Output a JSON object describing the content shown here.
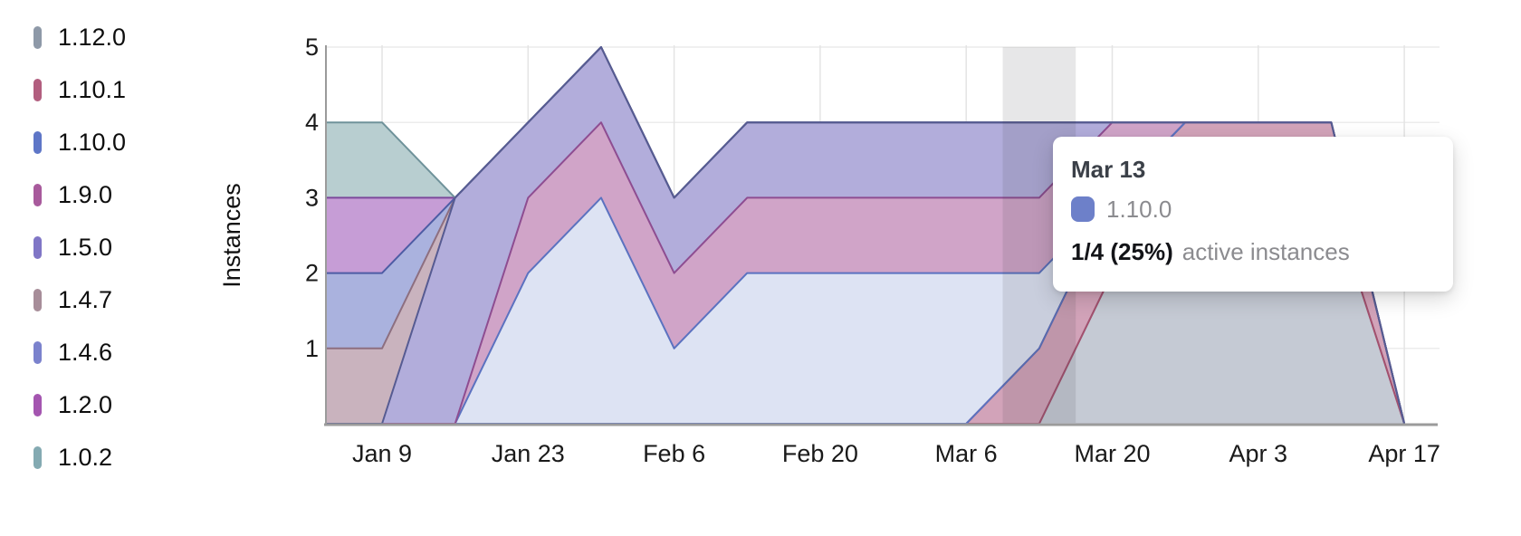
{
  "legend": {
    "items": [
      {
        "label": "1.12.0",
        "color": "#8e99a8"
      },
      {
        "label": "1.10.1",
        "color": "#b25e7f"
      },
      {
        "label": "1.10.0",
        "color": "#5e76c7"
      },
      {
        "label": "1.9.0",
        "color": "#a85a9c"
      },
      {
        "label": "1.5.0",
        "color": "#8076c6"
      },
      {
        "label": "1.4.7",
        "color": "#a78d99"
      },
      {
        "label": "1.4.6",
        "color": "#7b82cd"
      },
      {
        "label": "1.2.0",
        "color": "#a455b0"
      },
      {
        "label": "1.0.2",
        "color": "#84aab2"
      }
    ]
  },
  "tooltip": {
    "date": "Mar 13",
    "series": "1.10.0",
    "swatch_color": "#6d80c9",
    "value": "1/4 (25%)",
    "suffix": "active instances"
  },
  "chart_data": {
    "type": "area",
    "stacked": true,
    "title": "",
    "xlabel": "",
    "ylabel": "Instances",
    "grid": true,
    "legend_position": "left",
    "x": [
      "Jan 2",
      "Jan 9",
      "Jan 16",
      "Jan 23",
      "Jan 30",
      "Feb 6",
      "Feb 13",
      "Feb 20",
      "Feb 27",
      "Mar 6",
      "Mar 13",
      "Mar 20",
      "Mar 27",
      "Apr 3",
      "Apr 10",
      "Apr 17"
    ],
    "x_tick_indices": [
      1,
      3,
      5,
      7,
      9,
      11,
      13,
      15
    ],
    "ylim": [
      0,
      5
    ],
    "yticks": [
      1,
      2,
      3,
      4,
      5
    ],
    "highlight_index": 10,
    "stack_order": [
      "1.12.0",
      "1.10.1",
      "1.10.0",
      "1.9.0",
      "1.5.0",
      "1.4.7",
      "1.4.6",
      "1.2.0",
      "1.0.2"
    ],
    "stroke_order": [
      "1.12.0",
      "1.10.1",
      "1.10.0",
      "1.9.0",
      "1.4.7",
      "1.4.6",
      "1.2.0",
      "1.0.2",
      "1.5.0"
    ],
    "stroke_bottom": [
      "1.10.1",
      "1.10.0"
    ],
    "series": [
      {
        "name": "1.12.0",
        "values": [
          0,
          0,
          0,
          0,
          0,
          0,
          0,
          0,
          0,
          0,
          0,
          2,
          3,
          3,
          3,
          0
        ],
        "stroke": "#8a93a3",
        "fill": "#c5cad4"
      },
      {
        "name": "1.10.1",
        "values": [
          0,
          0,
          0,
          0,
          0,
          0,
          0,
          0,
          0,
          0,
          1,
          1,
          1,
          1,
          1,
          0
        ],
        "stroke": "#a4506e",
        "fill": "#d2a3b9"
      },
      {
        "name": "1.10.0",
        "values": [
          0,
          0,
          0,
          2,
          3,
          1,
          2,
          2,
          2,
          2,
          1,
          0,
          0,
          0,
          0,
          0
        ],
        "stroke": "#5b72c0",
        "fill": "#dde3f3"
      },
      {
        "name": "1.9.0",
        "values": [
          0,
          0,
          0,
          1,
          1,
          1,
          1,
          1,
          1,
          1,
          1,
          1,
          0,
          0,
          0,
          0
        ],
        "stroke": "#8e4d91",
        "fill": "#d0a4c8"
      },
      {
        "name": "1.5.0",
        "values": [
          0,
          0,
          3,
          1,
          1,
          1,
          1,
          1,
          1,
          1,
          1,
          0,
          0,
          0,
          0,
          0
        ],
        "stroke": "#565b92",
        "fill": "#b2addb"
      },
      {
        "name": "1.4.7",
        "values": [
          1,
          1,
          0,
          0,
          0,
          0,
          0,
          0,
          0,
          0,
          0,
          0,
          0,
          0,
          0,
          0
        ],
        "stroke": "#8d6f80",
        "fill": "#c9b3be"
      },
      {
        "name": "1.4.6",
        "values": [
          1,
          1,
          0,
          0,
          0,
          0,
          0,
          0,
          0,
          0,
          0,
          0,
          0,
          0,
          0,
          0
        ],
        "stroke": "#4e5ca4",
        "fill": "#aab2de"
      },
      {
        "name": "1.2.0",
        "values": [
          1,
          1,
          0,
          0,
          0,
          0,
          0,
          0,
          0,
          0,
          0,
          0,
          0,
          0,
          0,
          0
        ],
        "stroke": "#7c489b",
        "fill": "#c69dd6"
      },
      {
        "name": "1.0.2",
        "values": [
          1,
          1,
          0,
          0,
          0,
          0,
          0,
          0,
          0,
          0,
          0,
          0,
          0,
          0,
          0,
          0
        ],
        "stroke": "#6f929a",
        "fill": "#b8ced0"
      }
    ],
    "colors": {
      "axis": "#9b9b9b",
      "grid_h": "#ececec",
      "grid_v": "#e4e4e4",
      "tick_text": "#1a1a1a",
      "highlight": "rgba(55,55,65,0.12)"
    }
  }
}
